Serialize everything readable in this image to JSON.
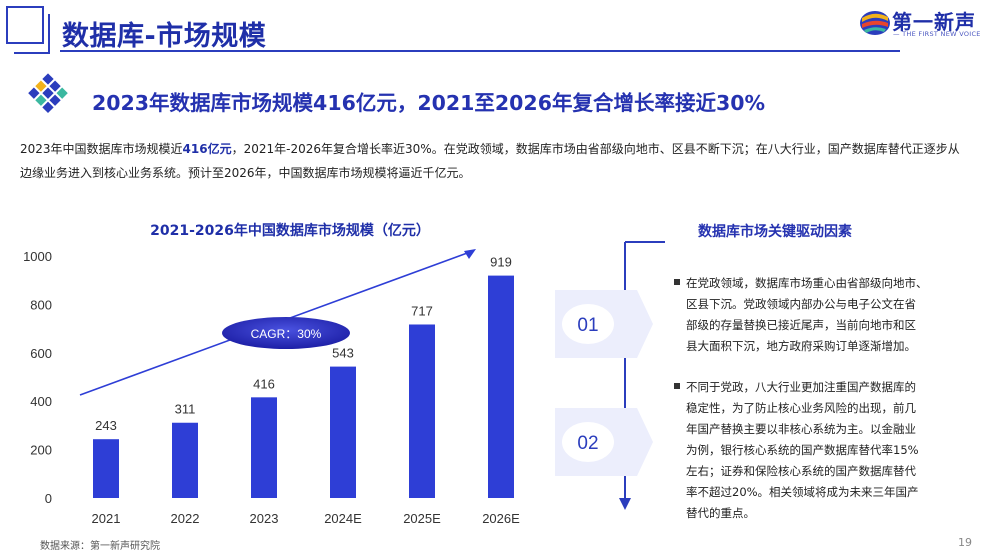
{
  "header": {
    "page_title": "数据库-市场规模",
    "logo_name": "第一新声",
    "logo_tagline": "— THE FIRST NEW VOICE —"
  },
  "headline": "2023年数据库市场规模416亿元，2021至2026年复合增长率接近30%",
  "paragraph": {
    "part1": "2023年中国数据库市场规模近",
    "highlight": "416亿元",
    "part2": "，2021年-2026年复合增长率近30%。在党政领域，数据库市场由省部级向地市、区县不断下沉；在八大行业，国产数据库替代正逐步从边缘业务进入到核心业务系统。预计至2026年，中国数据库市场规模将逼近千亿元。"
  },
  "chart_data": {
    "type": "bar",
    "title": "2021-2026年中国数据库市场规模（亿元）",
    "categories": [
      "2021",
      "2022",
      "2023",
      "2024E",
      "2025E",
      "2026E"
    ],
    "values": [
      243,
      311,
      416,
      543,
      717,
      919
    ],
    "ylim": [
      0,
      1000
    ],
    "yticks": [
      0,
      200,
      400,
      600,
      800,
      1000
    ],
    "bar_color": "#2e3ed6",
    "grid": false,
    "annotation": "CAGR：30%"
  },
  "drivers": {
    "title": "数据库市场关键驱动因素",
    "items": [
      {
        "num": "01",
        "lines": [
          "在党政领域，数据库市场重心由省部级向地市、",
          "区县下沉。党政领域内部办公与电子公文在省",
          "部级的存量替换已接近尾声，当前向地市和区",
          "县大面积下沉，地方政府采购订单逐渐增加。"
        ]
      },
      {
        "num": "02",
        "lines": [
          "不同于党政，八大行业更加注重国产数据库的",
          "稳定性，为了防止核心业务风险的出现，前几",
          "年国产替换主要以非核心系统为主。以金融业",
          "为例，银行核心系统的国产数据库替代率15%",
          "左右；证券和保险核心系统的国产数据库替代",
          "率不超过20%。相关领域将成为未来三年国产",
          "替代的重点。"
        ]
      }
    ]
  },
  "footer": {
    "source": "数据来源：第一新声研究院",
    "page_number": "19"
  },
  "colors": {
    "brand": "#1f2fa8",
    "bar": "#2e3ed6",
    "arrow_bg": "#eceefc"
  }
}
